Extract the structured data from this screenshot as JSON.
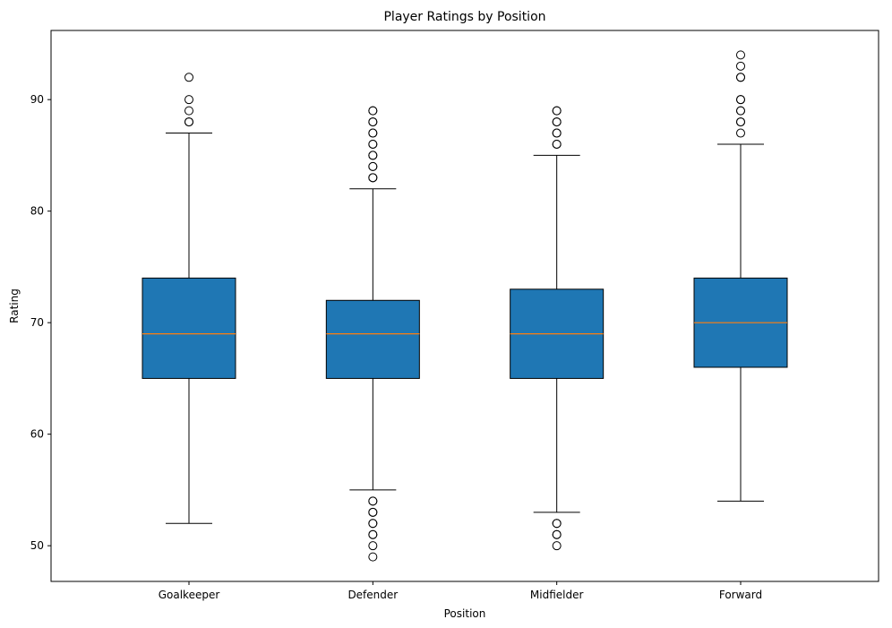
{
  "chart_data": {
    "type": "box",
    "title": "Player Ratings by Position",
    "xlabel": "Position",
    "ylabel": "Rating",
    "categories": [
      "Goalkeeper",
      "Defender",
      "Midfielder",
      "Forward"
    ],
    "ylim": [
      46.8,
      96.2
    ],
    "yticks": [
      50,
      60,
      70,
      80,
      90
    ],
    "grid": false,
    "box_color": "#1f77b4",
    "median_color": "#ff7f0e",
    "boxes": [
      {
        "category": "Goalkeeper",
        "whisker_low": 52,
        "q1": 65,
        "median": 69,
        "q3": 74,
        "whisker_high": 87,
        "outliers": [
          88,
          88,
          89,
          90,
          92
        ]
      },
      {
        "category": "Defender",
        "whisker_low": 55,
        "q1": 65,
        "median": 69,
        "q3": 72,
        "whisker_high": 82,
        "outliers": [
          49,
          50,
          51,
          51,
          52,
          52,
          53,
          53,
          54,
          54,
          83,
          83,
          84,
          84,
          85,
          85,
          86,
          86,
          87,
          87,
          88,
          88,
          89,
          89
        ]
      },
      {
        "category": "Midfielder",
        "whisker_low": 53,
        "q1": 65,
        "median": 69,
        "q3": 73,
        "whisker_high": 85,
        "outliers": [
          50,
          51,
          51,
          52,
          52,
          86,
          86,
          87,
          87,
          88,
          88,
          89,
          89
        ]
      },
      {
        "category": "Forward",
        "whisker_low": 54,
        "q1": 66,
        "median": 70,
        "q3": 74,
        "whisker_high": 86,
        "outliers": [
          87,
          88,
          88,
          89,
          89,
          90,
          90,
          92,
          92,
          93,
          94
        ]
      }
    ]
  }
}
